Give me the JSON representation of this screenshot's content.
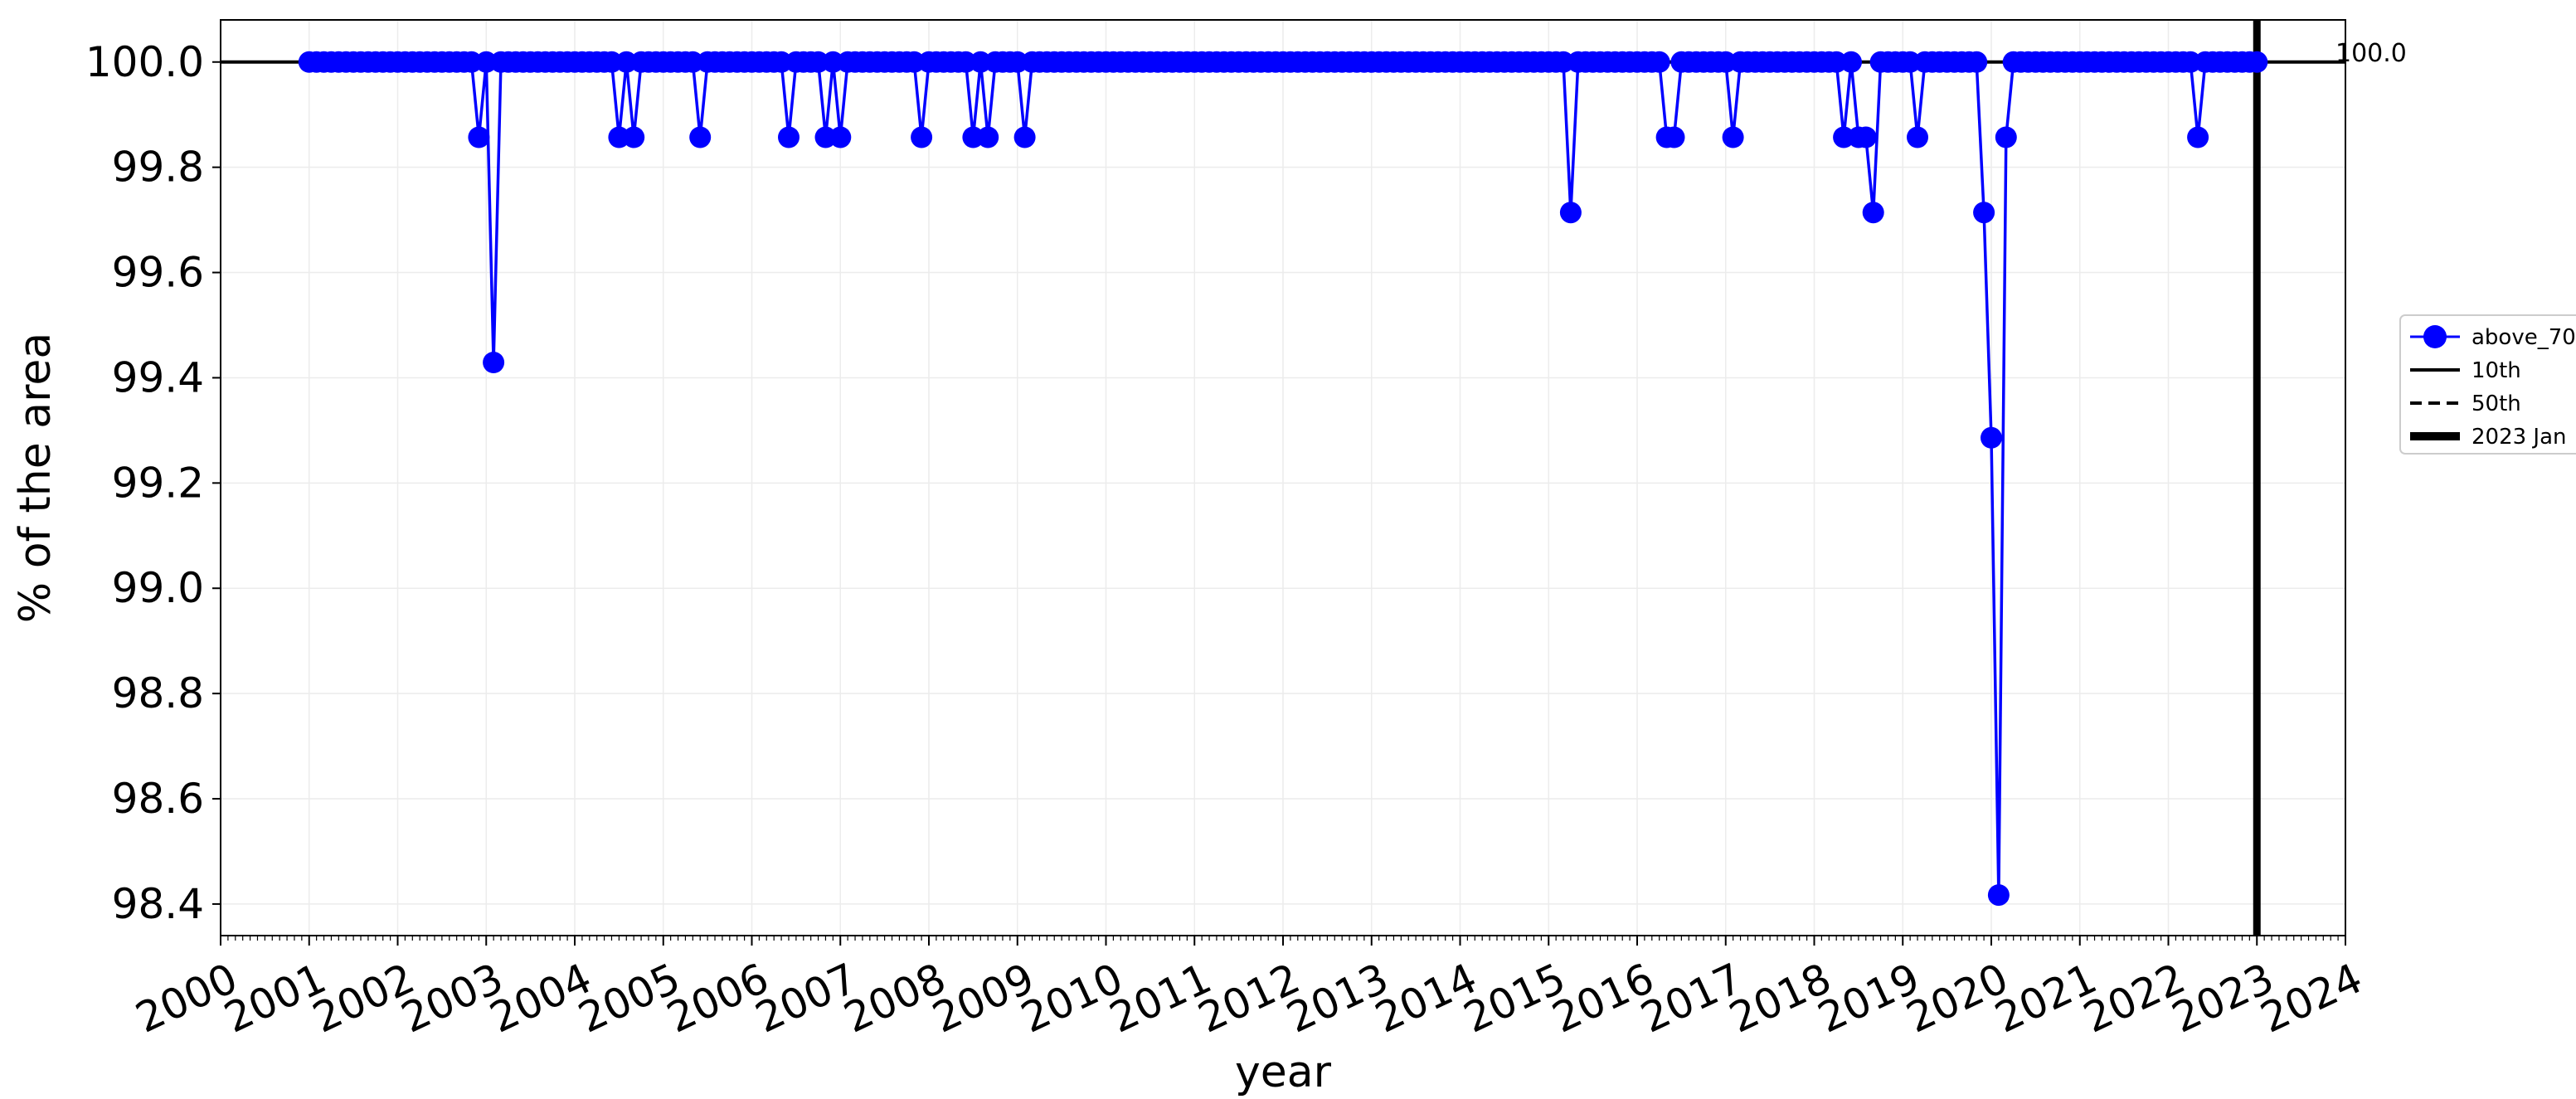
{
  "chart_data": {
    "type": "line",
    "title": "",
    "xlabel": "year",
    "ylabel": "% of the area",
    "xlim": [
      "2000-01-01",
      "2024-01-01"
    ],
    "ylim": [
      98.34,
      100.08
    ],
    "yticks": [
      "98.4",
      "98.6",
      "98.8",
      "99.0",
      "99.2",
      "99.4",
      "99.6",
      "99.8",
      "100.0"
    ],
    "xticks": [
      "2000",
      "2001",
      "2002",
      "2003",
      "2004",
      "2005",
      "2006",
      "2007",
      "2008",
      "2009",
      "2010",
      "2011",
      "2012",
      "2013",
      "2014",
      "2015",
      "2016",
      "2017",
      "2018",
      "2019",
      "2020",
      "2021",
      "2022",
      "2023",
      "2024"
    ],
    "grid": true,
    "legend_position": "outside-right",
    "series": [
      {
        "name": "above_70",
        "color": "#0000ff",
        "marker": "circle",
        "baseline": 100.0,
        "first_month": "2001-01",
        "last_month": "2023-01",
        "deviations": [
          {
            "date": "2002-12",
            "value": 99.857
          },
          {
            "date": "2003-02",
            "value": 99.429
          },
          {
            "date": "2004-07",
            "value": 99.857
          },
          {
            "date": "2004-09",
            "value": 99.857
          },
          {
            "date": "2005-06",
            "value": 99.857
          },
          {
            "date": "2006-06",
            "value": 99.857
          },
          {
            "date": "2006-11",
            "value": 99.857
          },
          {
            "date": "2007-01",
            "value": 99.857
          },
          {
            "date": "2007-12",
            "value": 99.857
          },
          {
            "date": "2008-07",
            "value": 99.857
          },
          {
            "date": "2008-09",
            "value": 99.857
          },
          {
            "date": "2009-02",
            "value": 99.857
          },
          {
            "date": "2015-04",
            "value": 99.714
          },
          {
            "date": "2016-05",
            "value": 99.857
          },
          {
            "date": "2016-06",
            "value": 99.857
          },
          {
            "date": "2017-02",
            "value": 99.857
          },
          {
            "date": "2018-05",
            "value": 99.857
          },
          {
            "date": "2018-07",
            "value": 99.857
          },
          {
            "date": "2018-08",
            "value": 99.857
          },
          {
            "date": "2018-09",
            "value": 99.714
          },
          {
            "date": "2019-03",
            "value": 99.857
          },
          {
            "date": "2019-12",
            "value": 99.714
          },
          {
            "date": "2020-01",
            "value": 99.286
          },
          {
            "date": "2020-02",
            "value": 98.417
          },
          {
            "date": "2020-03",
            "value": 99.857
          },
          {
            "date": "2022-05",
            "value": 99.857
          }
        ]
      }
    ],
    "reference_lines": [
      {
        "name": "10th",
        "value": 100.0,
        "style": "solid",
        "label": "100.0"
      },
      {
        "name": "50th",
        "value": 100.0,
        "style": "dashed"
      },
      {
        "name": "2023 Jan",
        "date": "2023-01",
        "style": "thick-vertical"
      }
    ]
  }
}
